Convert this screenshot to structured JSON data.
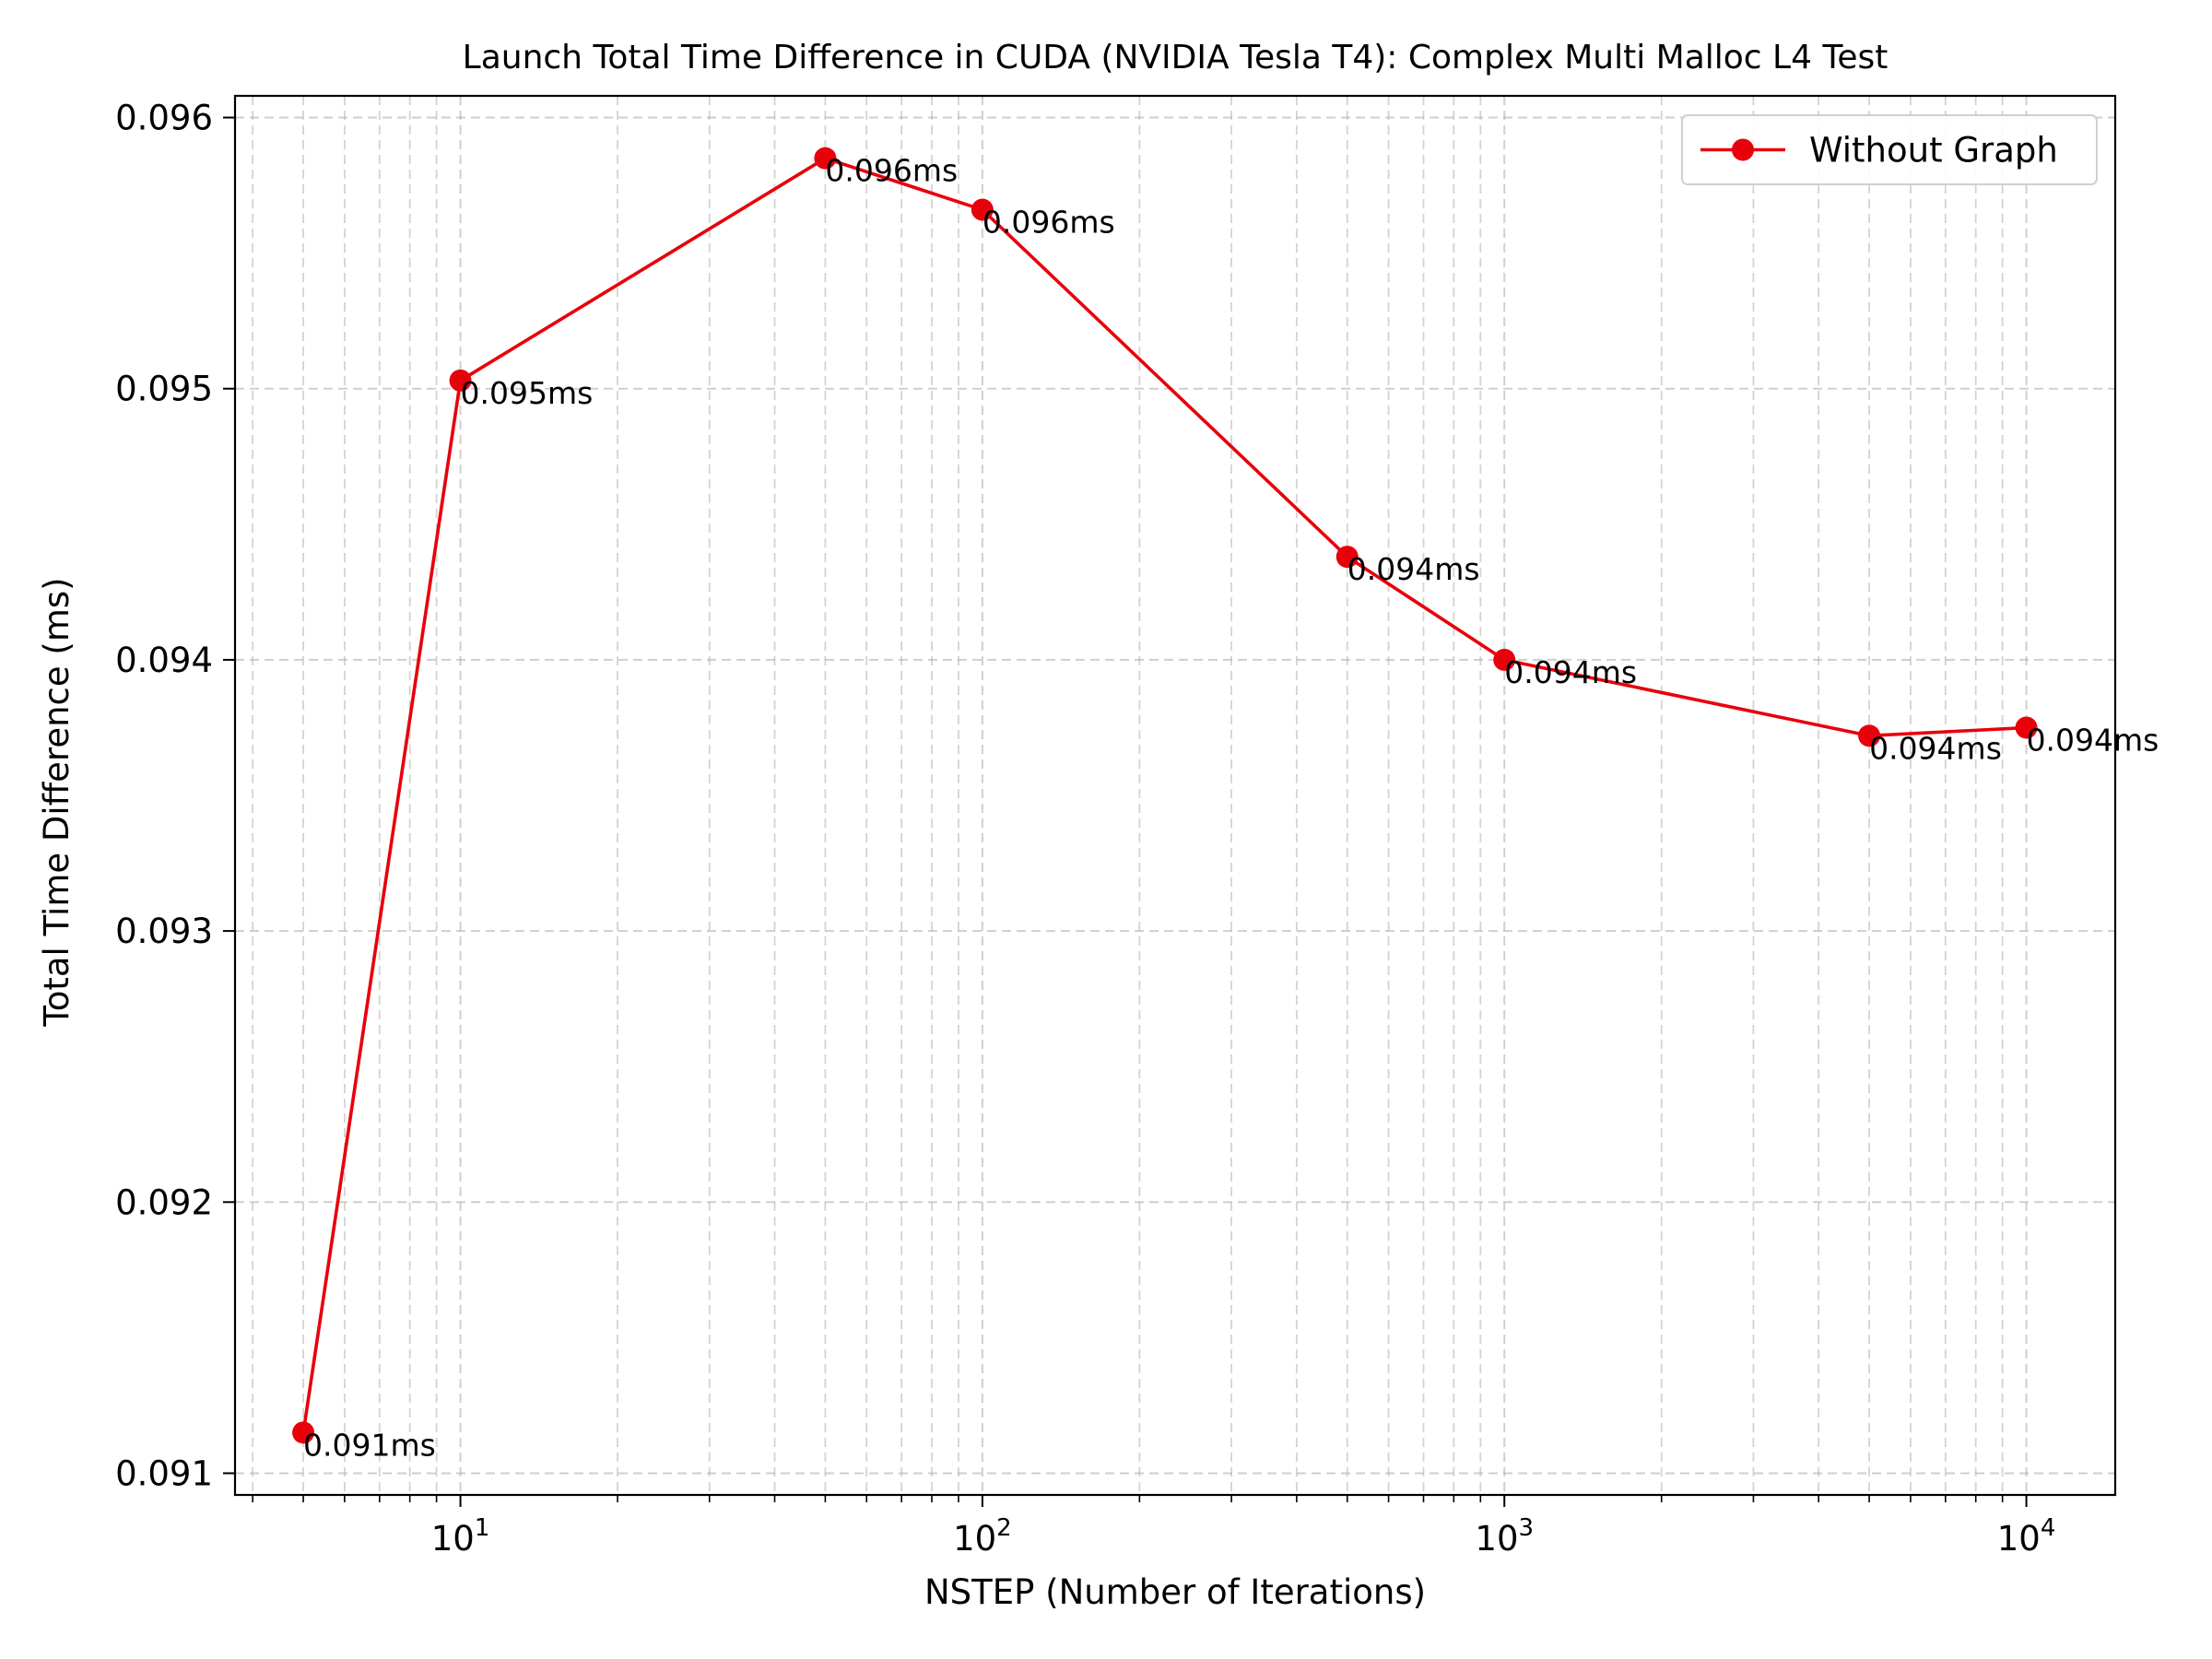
{
  "chart_data": {
    "type": "line",
    "title": "Launch Total Time Difference in CUDA (NVIDIA Tesla T4): Complex Multi Malloc L4 Test",
    "xlabel": "NSTEP (Number of Iterations)",
    "ylabel": "Total Time Difference (ms)",
    "xscale": "log",
    "xlim": [
      3.7,
      14800
    ],
    "ylim": [
      0.09092,
      0.09608
    ],
    "grid": true,
    "legend_position": "top-right",
    "x_ticks": [
      {
        "value": 10,
        "base": "10",
        "exp": "1"
      },
      {
        "value": 100,
        "base": "10",
        "exp": "2"
      },
      {
        "value": 1000,
        "base": "10",
        "exp": "3"
      },
      {
        "value": 10000,
        "base": "10",
        "exp": "4"
      }
    ],
    "y_ticks": [
      {
        "value": 0.091,
        "label": "0.091"
      },
      {
        "value": 0.092,
        "label": "0.092"
      },
      {
        "value": 0.093,
        "label": "0.093"
      },
      {
        "value": 0.094,
        "label": "0.094"
      },
      {
        "value": 0.095,
        "label": "0.095"
      },
      {
        "value": 0.096,
        "label": "0.096"
      }
    ],
    "series": [
      {
        "name": "Without Graph",
        "color": "#e8000b",
        "marker": "circle",
        "x": [
          5,
          10,
          50,
          100,
          500,
          1000,
          5000,
          10000
        ],
        "y": [
          0.09115,
          0.09503,
          0.09585,
          0.09566,
          0.09438,
          0.094,
          0.09372,
          0.09375
        ],
        "labels": [
          "0.091ms",
          "0.095ms",
          "0.096ms",
          "0.096ms",
          "0.094ms",
          "0.094ms",
          "0.094ms",
          "0.094ms"
        ]
      }
    ]
  }
}
